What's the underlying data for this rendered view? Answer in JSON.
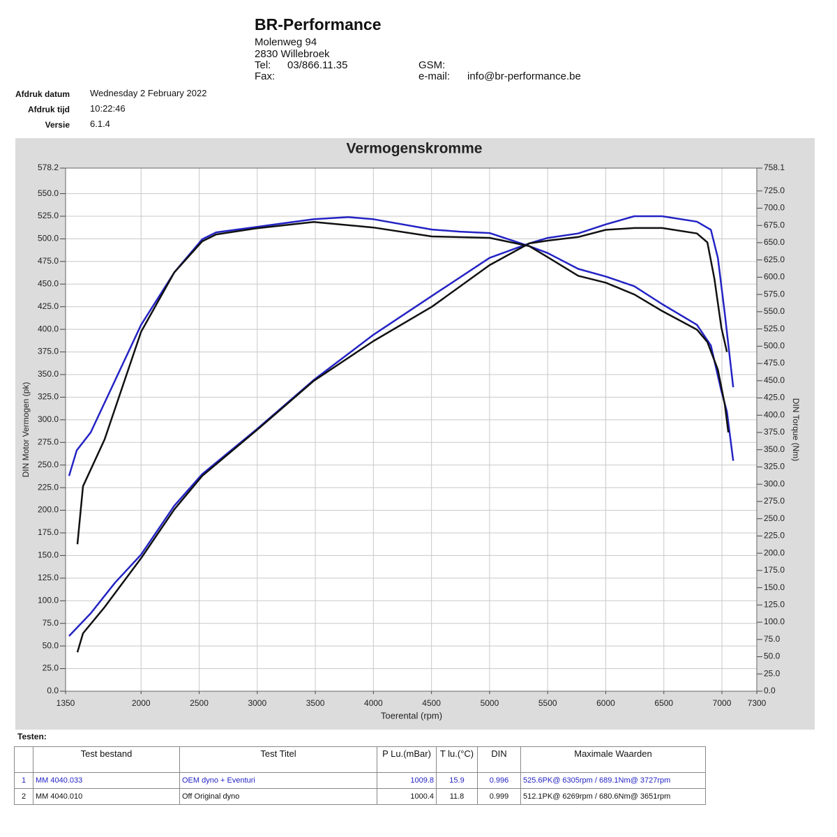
{
  "header": {
    "company": "BR-Performance",
    "street": "Molenweg 94",
    "city": "2830 Willebroek",
    "tel_label": "Tel:",
    "tel": "03/866.11.35",
    "fax_label": "Fax:",
    "gsm_label": "GSM:",
    "email_label": "e-mail:",
    "email": "info@br-performance.be"
  },
  "meta": [
    {
      "label": "Afdruk datum",
      "value": "Wednesday 2 February 2022"
    },
    {
      "label": "Afdruk tijd",
      "value": "10:22:46"
    },
    {
      "label": "Versie",
      "value": "6.1.4"
    }
  ],
  "chart_data": {
    "type": "line",
    "title": "Vermogenskromme",
    "xlabel": "Toerental (rpm)",
    "ylabel": "DIN Motor Vermogen (pk)",
    "y2label": "DIN Torque (Nm)",
    "grid": true,
    "xlim": [
      1350,
      7300
    ],
    "xticks": [
      1350,
      2000,
      2500,
      3000,
      3500,
      4000,
      4500,
      5000,
      5500,
      6000,
      6500,
      7000,
      7300
    ],
    "ylim": [
      0,
      578.2
    ],
    "yticks": [
      {
        "value": 0,
        "label": "0.0"
      },
      {
        "value": 25,
        "label": "25.0"
      },
      {
        "value": 50,
        "label": "50.0"
      },
      {
        "value": 75,
        "label": "75.0"
      },
      {
        "value": 100,
        "label": "100.0"
      },
      {
        "value": 125,
        "label": "125.0"
      },
      {
        "value": 150,
        "label": "150.0"
      },
      {
        "value": 175,
        "label": "175.0"
      },
      {
        "value": 200,
        "label": "200.0"
      },
      {
        "value": 225,
        "label": "225.0"
      },
      {
        "value": 250,
        "label": "250.0"
      },
      {
        "value": 275,
        "label": "275.0"
      },
      {
        "value": 300,
        "label": "300.0"
      },
      {
        "value": 325,
        "label": "325.0"
      },
      {
        "value": 350,
        "label": "350.0"
      },
      {
        "value": 375,
        "label": "375.0"
      },
      {
        "value": 400,
        "label": "400.0"
      },
      {
        "value": 425,
        "label": "425.0"
      },
      {
        "value": 450,
        "label": "450.0"
      },
      {
        "value": 475,
        "label": "475.0"
      },
      {
        "value": 500,
        "label": "500.0"
      },
      {
        "value": 525,
        "label": "525.0"
      },
      {
        "value": 550,
        "label": "550.0"
      },
      578.2
    ],
    "y2lim": [
      0,
      758.1
    ],
    "y2ticks": [
      {
        "value": 0,
        "label": "0.0"
      },
      {
        "value": 25,
        "label": "25.0"
      },
      {
        "value": 50,
        "label": "50.0"
      },
      {
        "value": 75,
        "label": "75.0"
      },
      {
        "value": 100,
        "label": "100.0"
      },
      {
        "value": 125,
        "label": "125.0"
      },
      {
        "value": 150,
        "label": "150.0"
      },
      {
        "value": 175,
        "label": "175.0"
      },
      {
        "value": 200,
        "label": "200.0"
      },
      {
        "value": 225,
        "label": "225.0"
      },
      {
        "value": 250,
        "label": "250.0"
      },
      {
        "value": 275,
        "label": "275.0"
      },
      {
        "value": 300,
        "label": "300.0"
      },
      {
        "value": 325,
        "label": "325.0"
      },
      {
        "value": 350,
        "label": "350.0"
      },
      {
        "value": 375,
        "label": "375.0"
      },
      {
        "value": 400,
        "label": "400.0"
      },
      {
        "value": 425,
        "label": "425.0"
      },
      {
        "value": 450,
        "label": "450.0"
      },
      {
        "value": 475,
        "label": "475.0"
      },
      {
        "value": 500,
        "label": "500.0"
      },
      {
        "value": 525,
        "label": "525.0"
      },
      {
        "value": 550,
        "label": "550.0"
      },
      {
        "value": 575,
        "label": "575.0"
      },
      {
        "value": 600,
        "label": "600.0"
      },
      {
        "value": 625,
        "label": "625.0"
      },
      {
        "value": 650,
        "label": "650.0"
      },
      {
        "value": 675,
        "label": "675.0"
      },
      {
        "value": 700,
        "label": "700.0"
      },
      {
        "value": 725,
        "label": "725.0"
      },
      758.1
    ],
    "series": [
      {
        "color": "#2323c4",
        "x": [
          1380,
          1566,
          1776,
          2000,
          2286,
          2526,
          3000,
          3486,
          4000,
          4504,
          5000,
          5342,
          5500,
          5763,
          6000,
          6245,
          6485,
          6785,
          6905,
          6965,
          7025,
          7097
        ],
        "values": [
          61,
          86,
          120,
          151,
          205,
          240,
          290,
          344,
          394,
          437,
          479,
          495,
          501,
          506,
          516,
          525,
          525,
          519,
          510,
          479,
          417,
          336
        ]
      },
      {
        "color": "#111111",
        "x": [
          1452,
          1500,
          1686,
          2000,
          2286,
          2526,
          3000,
          3486,
          4000,
          4504,
          5000,
          5342,
          5500,
          5763,
          6000,
          6245,
          6485,
          6785,
          6875,
          6935,
          6995,
          7043
        ],
        "values": [
          43,
          64,
          93,
          147,
          201,
          238,
          289,
          343,
          387,
          425,
          471,
          495,
          498,
          502,
          510,
          512,
          512,
          506,
          496,
          456,
          402,
          375
        ]
      },
      {
        "color": "#2323c4",
        "axis": "y2",
        "x": [
          1380,
          1446,
          1566,
          2000,
          2286,
          2526,
          2646,
          3000,
          3486,
          3786,
          4000,
          4504,
          4744,
          5000,
          5342,
          5500,
          5763,
          6000,
          6245,
          6485,
          6785,
          6905,
          6995,
          7043,
          7097
        ],
        "values": [
          312,
          349,
          375,
          531,
          607,
          655,
          665,
          673,
          684,
          687,
          684,
          669,
          666,
          664,
          645,
          635,
          612,
          601,
          587,
          561,
          531,
          501,
          435,
          405,
          334
        ]
      },
      {
        "color": "#111111",
        "axis": "y2",
        "x": [
          1452,
          1500,
          1686,
          2000,
          2286,
          2526,
          2646,
          3000,
          3486,
          4000,
          4504,
          5000,
          5342,
          5500,
          5763,
          6000,
          6245,
          6485,
          6785,
          6875,
          6965,
          7025,
          7055
        ],
        "values": [
          213,
          297,
          365,
          521,
          607,
          652,
          662,
          671,
          680,
          672,
          659,
          657,
          645,
          629,
          602,
          592,
          575,
          551,
          524,
          506,
          466,
          415,
          375
        ]
      }
    ]
  },
  "tests": {
    "title": "Testen:",
    "columns": [
      "Test bestand",
      "Test Titel",
      "P Lu.(mBar)",
      "T lu.(°C)",
      "DIN",
      "Maximale Waarden"
    ],
    "rows": [
      [
        "1",
        "MM 4040.033",
        "OEM dyno + Eventuri",
        "1009.8",
        "15.9",
        "0.996",
        "525.6PK@ 6305rpm / 689.1Nm@ 3727rpm"
      ],
      [
        "2",
        "MM 4040.010",
        "Off Original dyno",
        "1000.4",
        "11.8",
        "0.999",
        "512.1PK@ 6269rpm / 680.6Nm@ 3651rpm"
      ]
    ]
  }
}
